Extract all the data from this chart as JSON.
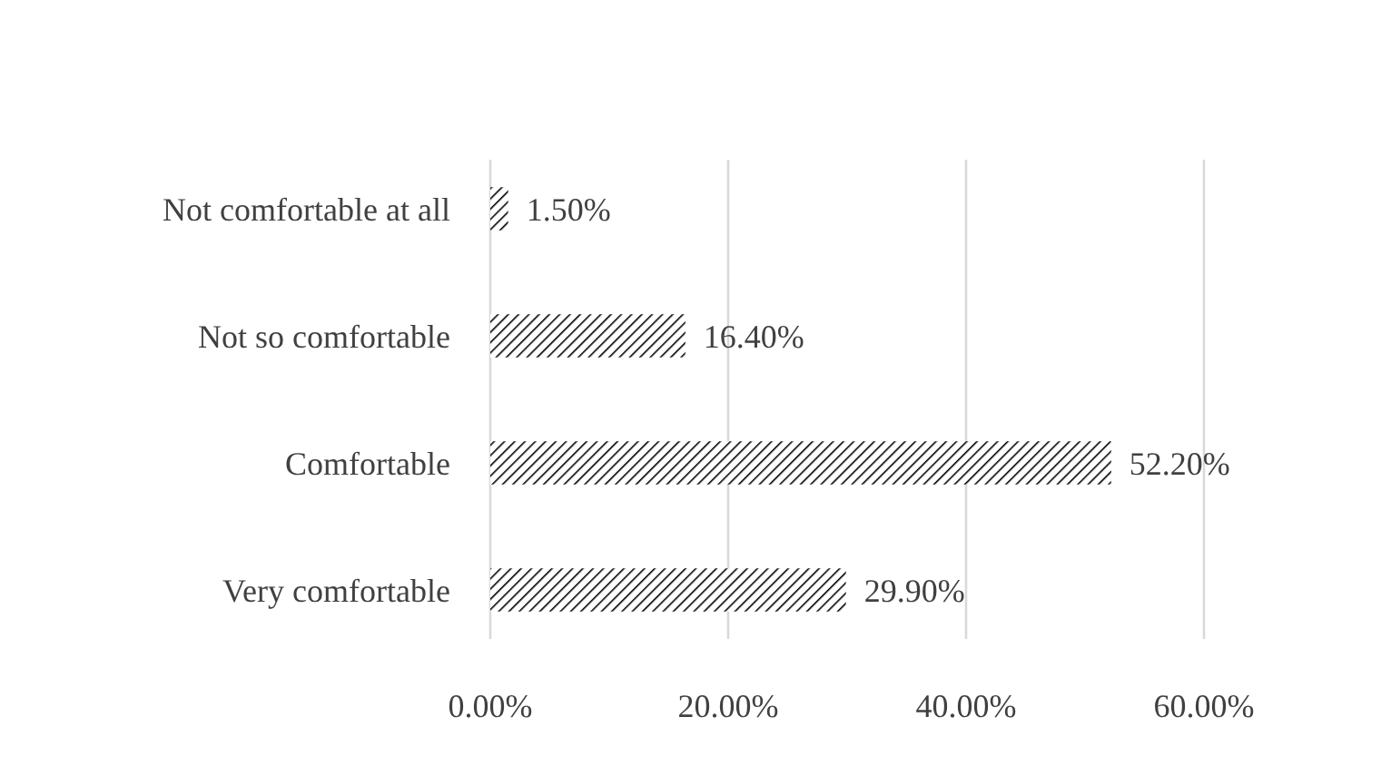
{
  "chart_data": {
    "type": "bar",
    "orientation": "horizontal",
    "categories": [
      "Not comfortable at all",
      "Not so comfortable",
      "Comfortable",
      "Very comfortable"
    ],
    "values": [
      1.5,
      16.4,
      52.2,
      29.9
    ],
    "value_labels": [
      "1.50%",
      "16.40%",
      "52.20%",
      "29.90%"
    ],
    "color": "#000000",
    "xlim": [
      0,
      60
    ],
    "xticks": [
      {
        "value": 0,
        "label": "0.00%"
      },
      {
        "value": 20,
        "label": "20.00%"
      },
      {
        "value": 40,
        "label": "40.00%"
      },
      {
        "value": 60,
        "label": "60.00%"
      }
    ],
    "grid": "x"
  }
}
